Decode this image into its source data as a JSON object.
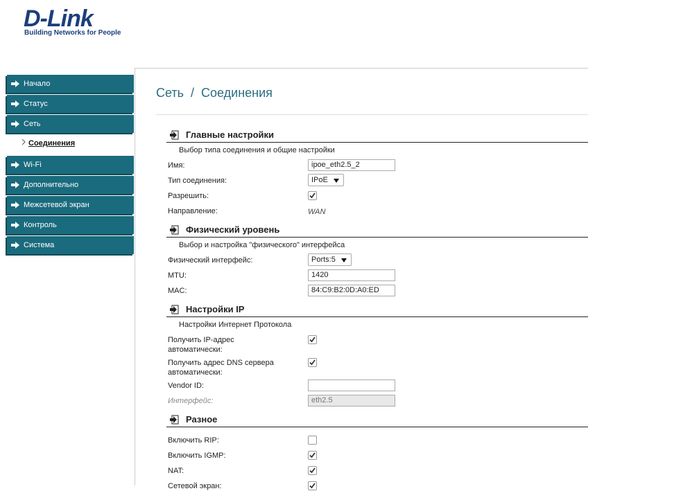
{
  "logo": {
    "brand": "D-Link",
    "tagline": "Building Networks for People"
  },
  "menu": [
    {
      "label": "Начало"
    },
    {
      "label": "Статус"
    },
    {
      "label": "Сеть",
      "children": [
        "Соединения"
      ]
    },
    {
      "label": "Wi-Fi"
    },
    {
      "label": "Дополнительно"
    },
    {
      "label": "Межсетевой экран"
    },
    {
      "label": "Контроль"
    },
    {
      "label": "Система"
    }
  ],
  "page_title": "Сеть  /  Соединения",
  "sections": [
    {
      "title": "Главные настройки",
      "subtitle": "Выбор типа соединения и общие настройки",
      "fields": [
        {
          "label": "Имя:",
          "type": "input",
          "value": "ipoe_eth2.5_2"
        },
        {
          "label": "Тип соединения:",
          "type": "select",
          "value": "IPoE"
        },
        {
          "label": "Разрешить:",
          "type": "checkbox",
          "checked": true
        },
        {
          "label": "Направление:",
          "type": "text",
          "value": "WAN"
        }
      ]
    },
    {
      "title": "Физический уровень",
      "subtitle": "Выбор и настройка \"физического\" интерфейса",
      "fields": [
        {
          "label": "Физический интерфейс:",
          "type": "select",
          "value": "Ports:5"
        },
        {
          "label": "MTU:",
          "type": "input",
          "value": "1420"
        },
        {
          "label": "MAC:",
          "type": "input",
          "value": "84:C9:B2:0D:A0:ED"
        }
      ]
    },
    {
      "title": "Настройки IP",
      "subtitle": "Настройки Интернет Протокола",
      "fields": [
        {
          "label": "Получить IP-адрес автоматически:",
          "type": "checkbox",
          "checked": true
        },
        {
          "label": "Получить адрес DNS сервера автоматически:",
          "type": "checkbox",
          "checked": true
        },
        {
          "label": "Vendor ID:",
          "type": "input",
          "value": ""
        },
        {
          "label": "Интерфейс:",
          "type": "input",
          "value": "eth2.5",
          "disabled": true
        }
      ]
    },
    {
      "title": "Разное",
      "fields": [
        {
          "label": "Включить RIP:",
          "type": "checkbox",
          "checked": false
        },
        {
          "label": "Включить IGMP:",
          "type": "checkbox",
          "checked": true
        },
        {
          "label": "NAT:",
          "type": "checkbox",
          "checked": true
        },
        {
          "label": "Сетевой экран:",
          "type": "checkbox",
          "checked": true
        }
      ]
    }
  ]
}
